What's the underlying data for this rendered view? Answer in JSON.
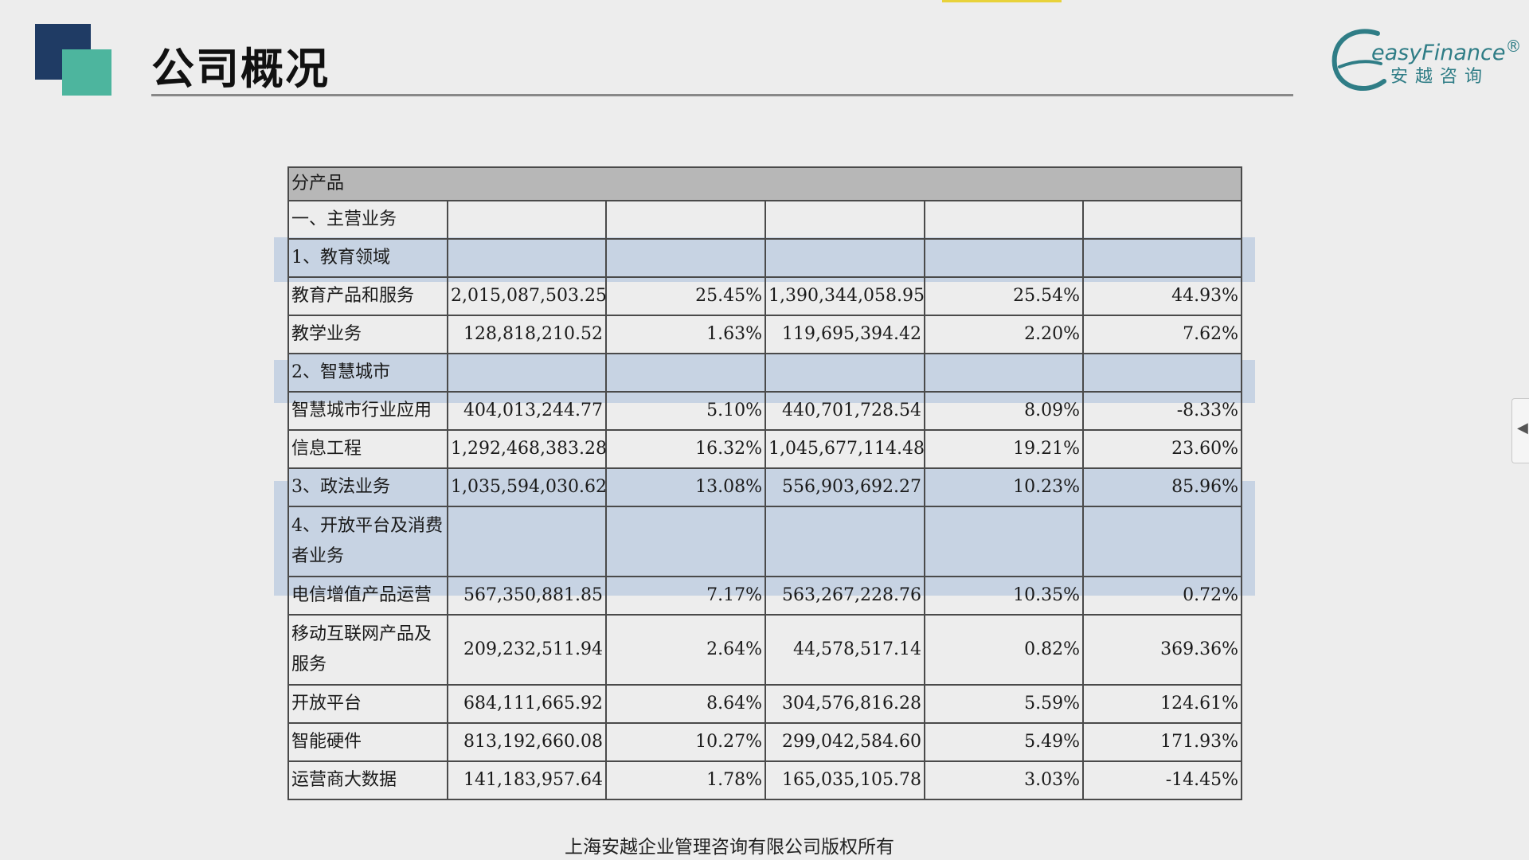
{
  "page": {
    "title": "公司概况"
  },
  "brand": {
    "name_en": "easyFinance",
    "registered": "®",
    "name_cn": "安越咨询"
  },
  "table": {
    "header": "分产品",
    "rows": [
      {
        "label": "一、主营业务",
        "highlight": false,
        "values": [
          "",
          "",
          "",
          "",
          ""
        ]
      },
      {
        "label": "1、教育领域",
        "highlight": true,
        "values": [
          "",
          "",
          "",
          "",
          ""
        ]
      },
      {
        "label": "教育产品和服务",
        "highlight": false,
        "values": [
          "2,015,087,503.25",
          "25.45%",
          "1,390,344,058.95",
          "25.54%",
          "44.93%"
        ]
      },
      {
        "label": "教学业务",
        "highlight": false,
        "values": [
          "128,818,210.52",
          "1.63%",
          "119,695,394.42",
          "2.20%",
          "7.62%"
        ]
      },
      {
        "label": "2、智慧城市",
        "highlight": true,
        "values": [
          "",
          "",
          "",
          "",
          ""
        ]
      },
      {
        "label": "智慧城市行业应用",
        "highlight": false,
        "values": [
          "404,013,244.77",
          "5.10%",
          "440,701,728.54",
          "8.09%",
          "-8.33%"
        ]
      },
      {
        "label": "信息工程",
        "highlight": false,
        "values": [
          "1,292,468,383.28",
          "16.32%",
          "1,045,677,114.48",
          "19.21%",
          "23.60%"
        ]
      },
      {
        "label": "3、政法业务",
        "highlight": true,
        "values": [
          "1,035,594,030.62",
          "13.08%",
          "556,903,692.27",
          "10.23%",
          "85.96%"
        ]
      },
      {
        "label": "4、开放平台及消费者业务",
        "highlight": true,
        "tall": true,
        "values": [
          "",
          "",
          "",
          "",
          ""
        ]
      },
      {
        "label": "电信增值产品运营",
        "highlight": false,
        "values": [
          "567,350,881.85",
          "7.17%",
          "563,267,228.76",
          "10.35%",
          "0.72%"
        ]
      },
      {
        "label": "移动互联网产品及服务",
        "highlight": false,
        "tall": true,
        "values": [
          "209,232,511.94",
          "2.64%",
          "44,578,517.14",
          "0.82%",
          "369.36%"
        ]
      },
      {
        "label": "开放平台",
        "highlight": false,
        "values": [
          "684,111,665.92",
          "8.64%",
          "304,576,816.28",
          "5.59%",
          "124.61%"
        ]
      },
      {
        "label": "智能硬件",
        "highlight": false,
        "values": [
          "813,192,660.08",
          "10.27%",
          "299,042,584.60",
          "5.49%",
          "171.93%"
        ]
      },
      {
        "label": "运营商大数据",
        "highlight": false,
        "values": [
          "141,183,957.64",
          "1.78%",
          "165,035,105.78",
          "3.03%",
          "-14.45%"
        ]
      }
    ]
  },
  "footer": {
    "copyright": "上海安越企业管理咨询有限公司版权所有"
  },
  "colors": {
    "accent_dark": "#1f3b64",
    "accent_teal": "#4db59e",
    "highlight_row": "#c7d3e3",
    "brand_text": "#2f7d86"
  }
}
